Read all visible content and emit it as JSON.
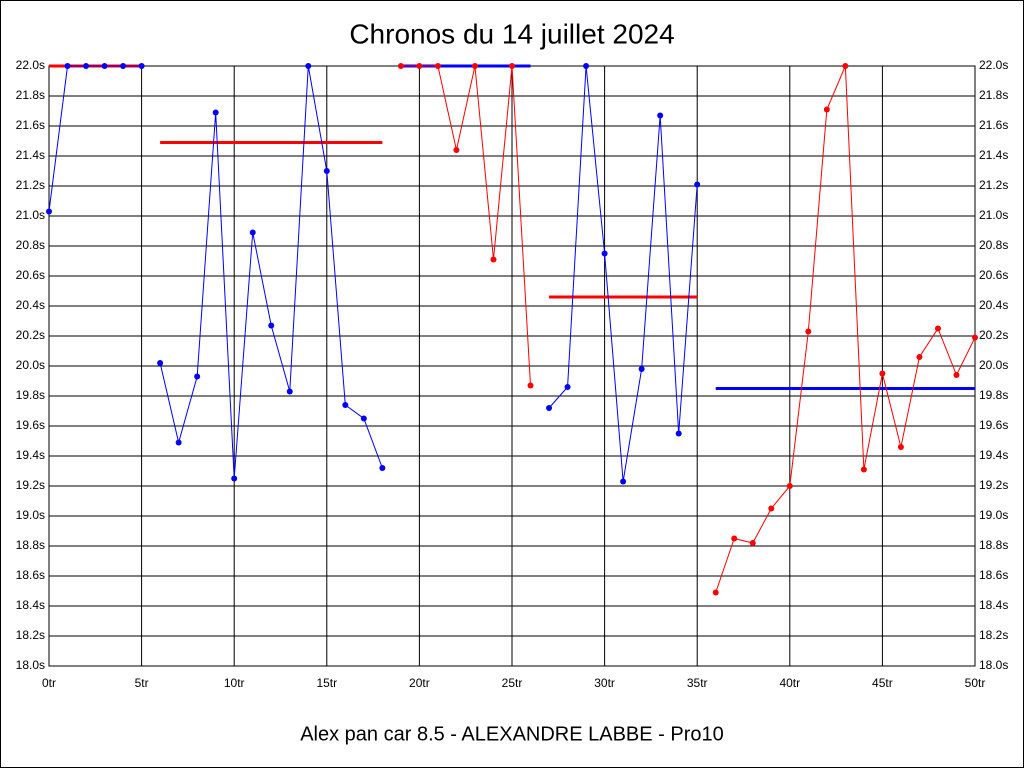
{
  "chart_data": {
    "type": "line",
    "title": "Chronos du 14 juillet 2024",
    "footer": "Alex pan car 8.5 - ALEXANDRE LABBE - Pro10",
    "xlim": [
      0,
      50
    ],
    "xticks": [
      {
        "value": 0,
        "label": "0tr"
      },
      {
        "value": 5,
        "label": "5tr"
      },
      {
        "value": 10,
        "label": "10tr"
      },
      {
        "value": 15,
        "label": "15tr"
      },
      {
        "value": 20,
        "label": "20tr"
      },
      {
        "value": 25,
        "label": "25tr"
      },
      {
        "value": 30,
        "label": "30tr"
      },
      {
        "value": 35,
        "label": "35tr"
      },
      {
        "value": 40,
        "label": "40tr"
      },
      {
        "value": 45,
        "label": "45tr"
      },
      {
        "value": 50,
        "label": "50tr"
      }
    ],
    "ylim": [
      18.0,
      22.0
    ],
    "yticks": [
      {
        "value": 18.0,
        "label": "18.0s"
      },
      {
        "value": 18.2,
        "label": "18.2s"
      },
      {
        "value": 18.4,
        "label": "18.4s"
      },
      {
        "value": 18.6,
        "label": "18.6s"
      },
      {
        "value": 18.8,
        "label": "18.8s"
      },
      {
        "value": 19.0,
        "label": "19.0s"
      },
      {
        "value": 19.2,
        "label": "19.2s"
      },
      {
        "value": 19.4,
        "label": "19.4s"
      },
      {
        "value": 19.6,
        "label": "19.6s"
      },
      {
        "value": 19.8,
        "label": "19.8s"
      },
      {
        "value": 20.0,
        "label": "20.0s"
      },
      {
        "value": 20.2,
        "label": "20.2s"
      },
      {
        "value": 20.4,
        "label": "20.4s"
      },
      {
        "value": 20.6,
        "label": "20.6s"
      },
      {
        "value": 20.8,
        "label": "20.8s"
      },
      {
        "value": 21.0,
        "label": "21.0s"
      },
      {
        "value": 21.2,
        "label": "21.2s"
      },
      {
        "value": 21.4,
        "label": "21.4s"
      },
      {
        "value": 21.6,
        "label": "21.6s"
      },
      {
        "value": 21.8,
        "label": "21.8s"
      },
      {
        "value": 22.0,
        "label": "22.0s"
      }
    ],
    "grid": true,
    "mean_lines": [
      {
        "x": [
          0,
          5
        ],
        "value": 22.0,
        "color": "#ff0000"
      },
      {
        "x": [
          6,
          18
        ],
        "value": 21.49,
        "color": "#ff0000"
      },
      {
        "x": [
          19,
          26
        ],
        "value": 22.0,
        "color": "#0000ff"
      },
      {
        "x": [
          27,
          35
        ],
        "value": 20.46,
        "color": "#ff0000"
      },
      {
        "x": [
          36,
          50
        ],
        "value": 19.85,
        "color": "#0000ff"
      }
    ],
    "series": [
      {
        "color": "#0000ff",
        "x": [
          0,
          1,
          2,
          3,
          4,
          5
        ],
        "values": [
          21.03,
          22.0,
          22.0,
          22.0,
          22.0,
          22.0
        ]
      },
      {
        "color": "#0000ff",
        "x": [
          6,
          7,
          8,
          9,
          10,
          11,
          12,
          13,
          14,
          15,
          16,
          17,
          18
        ],
        "values": [
          20.02,
          19.49,
          19.93,
          21.69,
          19.25,
          20.89,
          20.27,
          19.83,
          22.0,
          21.3,
          19.74,
          19.65,
          19.32
        ]
      },
      {
        "color": "#ff0000",
        "x": [
          19,
          20,
          21,
          22,
          23,
          24,
          25,
          26
        ],
        "values": [
          22.0,
          22.0,
          22.0,
          21.44,
          22.0,
          20.71,
          22.0,
          19.87
        ]
      },
      {
        "color": "#0000ff",
        "x": [
          27,
          28,
          29,
          30,
          31,
          32,
          33,
          34,
          35
        ],
        "values": [
          19.72,
          19.86,
          22.0,
          20.75,
          19.23,
          19.98,
          21.67,
          19.55,
          21.21
        ]
      },
      {
        "color": "#ff0000",
        "x": [
          36,
          37,
          38,
          39,
          40,
          41,
          42,
          43,
          44,
          45,
          46,
          47,
          48,
          49,
          50
        ],
        "values": [
          18.49,
          18.85,
          18.82,
          19.05,
          19.2,
          20.23,
          21.71,
          22.0,
          19.31,
          19.95,
          19.46,
          20.06,
          20.25,
          19.94,
          20.19
        ]
      }
    ]
  }
}
